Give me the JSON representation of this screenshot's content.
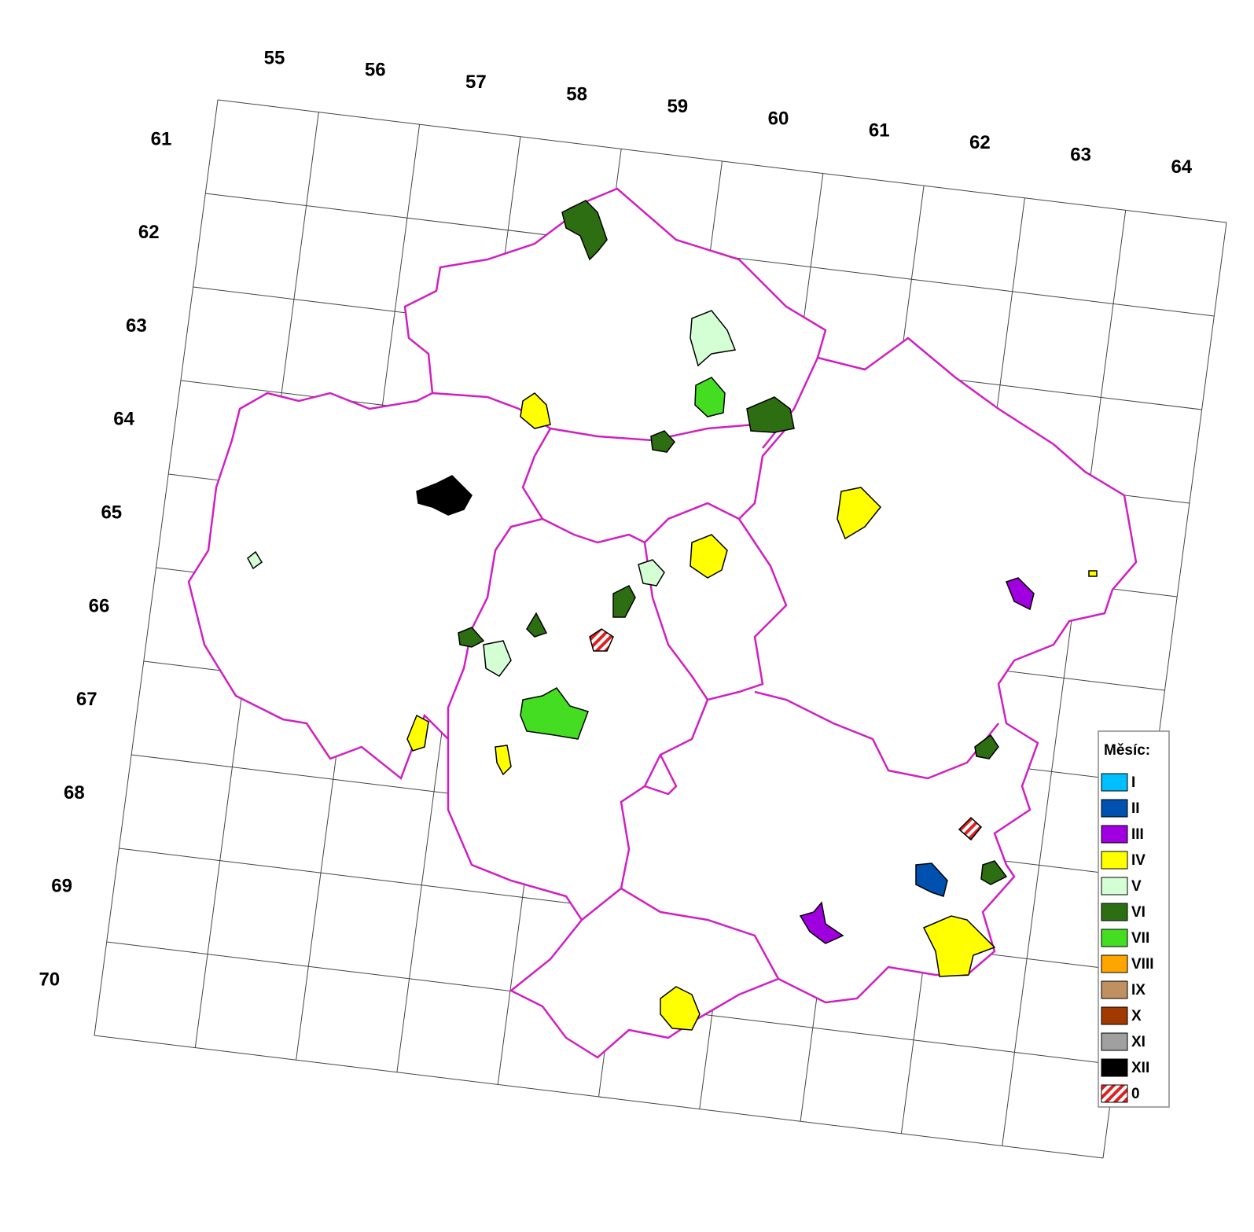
{
  "column_labels": [
    "55",
    "56",
    "57",
    "58",
    "59",
    "60",
    "61",
    "62",
    "63",
    "64"
  ],
  "row_labels": [
    "61",
    "62",
    "63",
    "64",
    "65",
    "66",
    "67",
    "68",
    "69",
    "70"
  ],
  "legend": {
    "title": "Měsíc:",
    "items": [
      {
        "label": "I",
        "color": "#00bfff"
      },
      {
        "label": "II",
        "color": "#0050b0"
      },
      {
        "label": "III",
        "color": "#a000e0"
      },
      {
        "label": "IV",
        "color": "#ffff00"
      },
      {
        "label": "V",
        "color": "#d4ffd4"
      },
      {
        "label": "VI",
        "color": "#2e6e12"
      },
      {
        "label": "VII",
        "color": "#44dd22"
      },
      {
        "label": "VIII",
        "color": "#ffa500"
      },
      {
        "label": "IX",
        "color": "#c09060"
      },
      {
        "label": "X",
        "color": "#a03a00"
      },
      {
        "label": "XI",
        "color": "#a0a0a0"
      },
      {
        "label": "XII",
        "color": "#000000"
      },
      {
        "label": "0",
        "color": "#e02020",
        "pattern": "stripes"
      }
    ]
  }
}
